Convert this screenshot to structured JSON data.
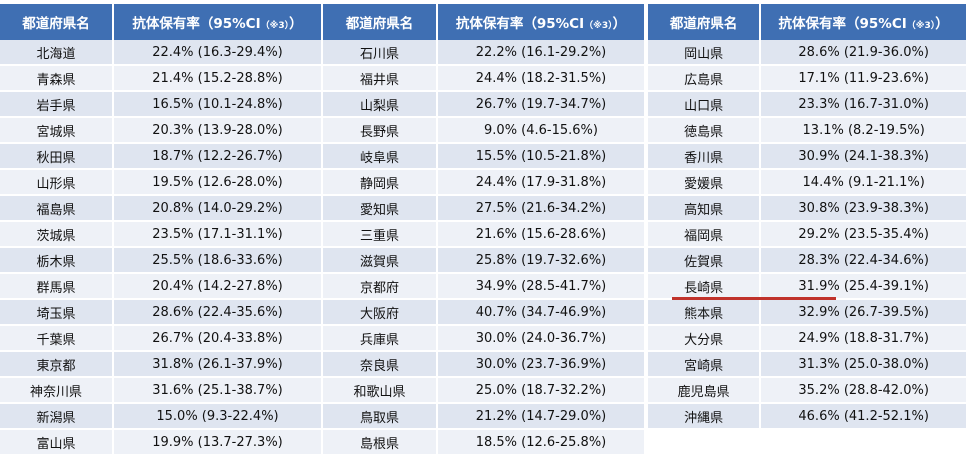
{
  "headers": {
    "pref": "都道府県名",
    "rate_main": "抗体保有率（95%CI",
    "rate_note": "（※3）",
    "rate_close": "）"
  },
  "columns": [
    [
      {
        "pref": "北海道",
        "rate": "22.4% (16.3-29.4%)"
      },
      {
        "pref": "青森県",
        "rate": "21.4% (15.2-28.8%)"
      },
      {
        "pref": "岩手県",
        "rate": "16.5% (10.1-24.8%)"
      },
      {
        "pref": "宮城県",
        "rate": "20.3% (13.9-28.0%)"
      },
      {
        "pref": "秋田県",
        "rate": "18.7% (12.2-26.7%)"
      },
      {
        "pref": "山形県",
        "rate": "19.5% (12.6-28.0%)"
      },
      {
        "pref": "福島県",
        "rate": "20.8% (14.0-29.2%)"
      },
      {
        "pref": "茨城県",
        "rate": "23.5% (17.1-31.1%)"
      },
      {
        "pref": "栃木県",
        "rate": "25.5% (18.6-33.6%)"
      },
      {
        "pref": "群馬県",
        "rate": "20.4% (14.2-27.8%)"
      },
      {
        "pref": "埼玉県",
        "rate": "28.6% (22.4-35.6%)"
      },
      {
        "pref": "千葉県",
        "rate": "26.7% (20.4-33.8%)"
      },
      {
        "pref": "東京都",
        "rate": "31.8% (26.1-37.9%)"
      },
      {
        "pref": "神奈川県",
        "rate": "31.6% (25.1-38.7%)"
      },
      {
        "pref": "新潟県",
        "rate": "15.0% (9.3-22.4%)"
      },
      {
        "pref": "富山県",
        "rate": "19.9% (13.7-27.3%)"
      }
    ],
    [
      {
        "pref": "石川県",
        "rate": "22.2% (16.1-29.2%)"
      },
      {
        "pref": "福井県",
        "rate": "24.4% (18.2-31.5%)"
      },
      {
        "pref": "山梨県",
        "rate": "26.7% (19.7-34.7%)"
      },
      {
        "pref": "長野県",
        "rate": "9.0% (4.6-15.6%)"
      },
      {
        "pref": "岐阜県",
        "rate": "15.5% (10.5-21.8%)"
      },
      {
        "pref": "静岡県",
        "rate": "24.4% (17.9-31.8%)"
      },
      {
        "pref": "愛知県",
        "rate": "27.5% (21.6-34.2%)"
      },
      {
        "pref": "三重県",
        "rate": "21.6% (15.6-28.6%)"
      },
      {
        "pref": "滋賀県",
        "rate": "25.8% (19.7-32.6%)"
      },
      {
        "pref": "京都府",
        "rate": "34.9% (28.5-41.7%)"
      },
      {
        "pref": "大阪府",
        "rate": "40.7% (34.7-46.9%)"
      },
      {
        "pref": "兵庫県",
        "rate": "30.0% (24.0-36.7%)"
      },
      {
        "pref": "奈良県",
        "rate": "30.0% (23.7-36.9%)"
      },
      {
        "pref": "和歌山県",
        "rate": "25.0% (18.7-32.2%)"
      },
      {
        "pref": "鳥取県",
        "rate": "21.2% (14.7-29.0%)"
      },
      {
        "pref": "島根県",
        "rate": "18.5% (12.6-25.8%)"
      }
    ],
    [
      {
        "pref": "岡山県",
        "rate": "28.6% (21.9-36.0%)"
      },
      {
        "pref": "広島県",
        "rate": "17.1% (11.9-23.6%)"
      },
      {
        "pref": "山口県",
        "rate": "23.3% (16.7-31.0%)"
      },
      {
        "pref": "徳島県",
        "rate": "13.1% (8.2-19.5%)"
      },
      {
        "pref": "香川県",
        "rate": "30.9% (24.1-38.3%)"
      },
      {
        "pref": "愛媛県",
        "rate": "14.4% (9.1-21.1%)"
      },
      {
        "pref": "高知県",
        "rate": "30.8% (23.9-38.3%)"
      },
      {
        "pref": "福岡県",
        "rate": "29.2% (23.5-35.4%)"
      },
      {
        "pref": "佐賀県",
        "rate": "28.3% (22.4-34.6%)"
      },
      {
        "pref": "長崎県",
        "rate": "31.9% (25.4-39.1%)"
      },
      {
        "pref": "熊本県",
        "rate": "32.9% (26.7-39.5%)"
      },
      {
        "pref": "大分県",
        "rate": "24.9% (18.8-31.7%)"
      },
      {
        "pref": "宮崎県",
        "rate": "31.3% (25.0-38.0%)"
      },
      {
        "pref": "鹿児島県",
        "rate": "35.2% (28.8-42.0%)"
      },
      {
        "pref": "沖縄県",
        "rate": "46.6% (41.2-52.1%)"
      }
    ]
  ],
  "highlight": {
    "column": 2,
    "row": 9,
    "color": "#c0322b"
  },
  "colors": {
    "header_bg": "#3f6fb3",
    "row_a": "#dfe5f0",
    "row_b": "#eef1f7"
  }
}
